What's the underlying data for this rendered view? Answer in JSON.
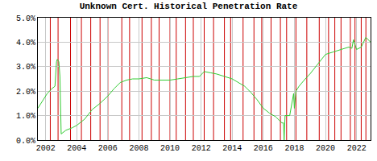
{
  "chart_data": {
    "type": "line",
    "title": "Unknown Cert. Historical Penetration Rate",
    "x": [
      2001.5,
      2001.8,
      2002.1,
      2002.4,
      2002.6,
      2002.7,
      2002.75,
      2002.85,
      2002.92,
      2003.0,
      2003.3,
      2003.7,
      2004.0,
      2004.5,
      2005.0,
      2005.5,
      2006.0,
      2006.4,
      2006.8,
      2007.2,
      2007.6,
      2008.0,
      2008.5,
      2009.0,
      2009.5,
      2010.0,
      2010.5,
      2011.0,
      2011.5,
      2011.9,
      2012.2,
      2012.6,
      2013.0,
      2013.5,
      2014.0,
      2014.4,
      2014.8,
      2015.2,
      2015.6,
      2016.0,
      2016.4,
      2016.8,
      2017.2,
      2017.3,
      2017.34,
      2017.4,
      2017.7,
      2017.95,
      2018.0,
      2018.1,
      2018.3,
      2018.7,
      2019.0,
      2019.5,
      2020.0,
      2020.5,
      2021.0,
      2021.5,
      2021.7,
      2021.8,
      2022.0,
      2022.3,
      2022.6,
      2022.9
    ],
    "series": [
      {
        "color": "#33cc33",
        "values": [
          1.3,
          1.6,
          1.9,
          2.1,
          2.2,
          3.2,
          3.3,
          3.2,
          2.6,
          0.25,
          0.4,
          0.5,
          0.6,
          0.85,
          1.25,
          1.5,
          1.8,
          2.1,
          2.35,
          2.45,
          2.5,
          2.5,
          2.55,
          2.45,
          2.45,
          2.45,
          2.5,
          2.55,
          2.6,
          2.6,
          2.8,
          2.75,
          2.7,
          2.6,
          2.5,
          2.35,
          2.2,
          1.95,
          1.65,
          1.3,
          1.1,
          0.95,
          0.7,
          0.7,
          0.0,
          1.0,
          1.0,
          1.9,
          1.3,
          2.0,
          2.2,
          2.5,
          2.7,
          3.1,
          3.5,
          3.6,
          3.7,
          3.8,
          3.75,
          4.1,
          3.7,
          3.8,
          4.2,
          4.0
        ]
      }
    ],
    "events": {
      "color": "#cc0000",
      "x": [
        2002.3,
        2002.8,
        2003.6,
        2004.3,
        2004.9,
        2005.5,
        2006.0,
        2006.9,
        2007.4,
        2008.2,
        2008.8,
        2009.3,
        2010.0,
        2010.4,
        2011.0,
        2011.5,
        2012.2,
        2012.8,
        2013.5,
        2013.9,
        2014.7,
        2015.4,
        2015.9,
        2016.5,
        2017.1,
        2017.5,
        2018.1,
        2018.8,
        2019.6,
        2020.2,
        2020.6,
        2021.0,
        2021.6,
        2021.9,
        2022.3,
        2022.6
      ]
    },
    "xlim": [
      2001.5,
      2022.9
    ],
    "xticks": [
      2002,
      2004,
      2006,
      2008,
      2010,
      2012,
      2014,
      2016,
      2018,
      2020,
      2022
    ],
    "ylim": [
      0,
      5
    ],
    "yticks": [
      {
        "value": 0,
        "label": "0.0%"
      },
      {
        "value": 1,
        "label": "1.0%"
      },
      {
        "value": 2,
        "label": "2.0%"
      },
      {
        "value": 3,
        "label": "3.0%"
      },
      {
        "value": 4,
        "label": "4.0%"
      },
      {
        "value": 5,
        "label": "5.0%"
      }
    ],
    "grid": true
  }
}
